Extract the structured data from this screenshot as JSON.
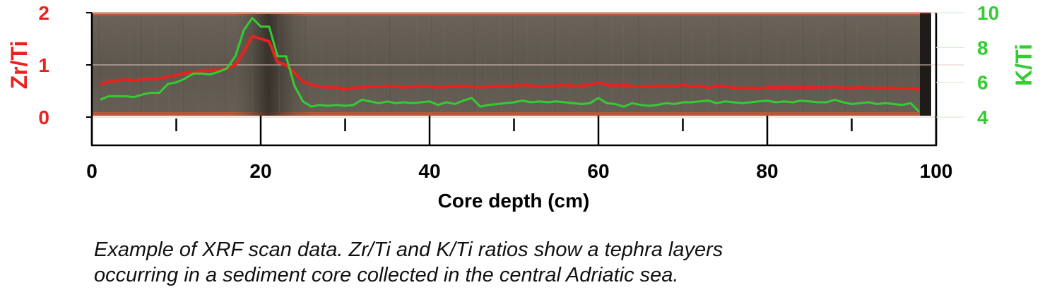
{
  "colors": {
    "zr_ti": "#e8231e",
    "k_ti": "#33cc33",
    "axis": "#000000",
    "core_fill": "#615a50",
    "core_dark": "#3d3730",
    "core_edge": "#c9572f"
  },
  "caption_lines": [
    "Example of XRF scan data. Zr/Ti and K/Ti ratios show a tephra layers",
    "occurring in a sediment core collected in the central Adriatic sea."
  ],
  "chart_data": {
    "type": "line",
    "background": "sediment core photograph",
    "xlabel": "Core depth (cm)",
    "xlim": [
      0,
      100
    ],
    "xticks": [
      0,
      20,
      40,
      60,
      80,
      100
    ],
    "xtick_labels": [
      "0",
      "20",
      "40",
      "60",
      "80",
      "100"
    ],
    "y_left": {
      "label": "Zr/Ti",
      "lim": [
        0,
        2
      ],
      "ticks": [
        0,
        1,
        2
      ],
      "tick_labels": [
        "0",
        "1",
        "2"
      ],
      "color": "#e8231e"
    },
    "y_right": {
      "label": "K/Ti",
      "lim": [
        4,
        10
      ],
      "ticks": [
        4,
        6,
        8,
        10
      ],
      "tick_labels": [
        "4",
        "6",
        "8",
        "10"
      ],
      "color": "#33cc33"
    },
    "grid": "horizontal, at left-axis ticks",
    "series": [
      {
        "name": "Zr/Ti",
        "axis": "left",
        "color": "#e8231e",
        "x": [
          1,
          2,
          3,
          4,
          5,
          6,
          7,
          8,
          9,
          10,
          11,
          12,
          13,
          14,
          15,
          16,
          17,
          18,
          19,
          20,
          21,
          22,
          23,
          24,
          25,
          26,
          27,
          28,
          29,
          30,
          31,
          32,
          33,
          34,
          35,
          36,
          37,
          38,
          39,
          40,
          41,
          42,
          43,
          44,
          45,
          46,
          47,
          48,
          49,
          50,
          51,
          52,
          53,
          54,
          55,
          56,
          57,
          58,
          59,
          60,
          61,
          62,
          63,
          64,
          65,
          66,
          67,
          68,
          69,
          70,
          71,
          72,
          73,
          74,
          75,
          76,
          77,
          78,
          79,
          80,
          81,
          82,
          83,
          84,
          85,
          86,
          87,
          88,
          89,
          90,
          91,
          92,
          93,
          94,
          95,
          96,
          97,
          98
        ],
        "y": [
          0.62,
          0.68,
          0.7,
          0.72,
          0.7,
          0.72,
          0.73,
          0.73,
          0.78,
          0.8,
          0.84,
          0.86,
          0.88,
          0.9,
          0.9,
          0.93,
          1.0,
          1.25,
          1.55,
          1.5,
          1.45,
          1.05,
          1.0,
          0.85,
          0.68,
          0.62,
          0.58,
          0.57,
          0.57,
          0.53,
          0.56,
          0.57,
          0.58,
          0.58,
          0.59,
          0.58,
          0.57,
          0.58,
          0.59,
          0.58,
          0.57,
          0.58,
          0.59,
          0.6,
          0.58,
          0.57,
          0.58,
          0.6,
          0.59,
          0.6,
          0.62,
          0.6,
          0.58,
          0.59,
          0.6,
          0.62,
          0.6,
          0.6,
          0.62,
          0.66,
          0.62,
          0.6,
          0.61,
          0.6,
          0.58,
          0.59,
          0.6,
          0.6,
          0.59,
          0.62,
          0.58,
          0.6,
          0.56,
          0.6,
          0.59,
          0.56,
          0.56,
          0.56,
          0.55,
          0.57,
          0.56,
          0.57,
          0.56,
          0.57,
          0.56,
          0.57,
          0.57,
          0.58,
          0.56,
          0.56,
          0.57,
          0.56,
          0.56,
          0.56,
          0.56,
          0.55,
          0.55,
          0.53
        ]
      },
      {
        "name": "K/Ti",
        "axis": "right",
        "color": "#33cc33",
        "x": [
          1,
          2,
          3,
          4,
          5,
          6,
          7,
          8,
          9,
          10,
          11,
          12,
          13,
          14,
          15,
          16,
          17,
          18,
          19,
          20,
          21,
          22,
          23,
          24,
          25,
          26,
          27,
          28,
          29,
          30,
          31,
          32,
          33,
          34,
          35,
          36,
          37,
          38,
          39,
          40,
          41,
          42,
          43,
          44,
          45,
          46,
          47,
          48,
          49,
          50,
          51,
          52,
          53,
          54,
          55,
          56,
          57,
          58,
          59,
          60,
          61,
          62,
          63,
          64,
          65,
          66,
          67,
          68,
          69,
          70,
          71,
          72,
          73,
          74,
          75,
          76,
          77,
          78,
          79,
          80,
          81,
          82,
          83,
          84,
          85,
          86,
          87,
          88,
          89,
          90,
          91,
          92,
          93,
          94,
          95,
          96,
          97,
          98
        ],
        "y": [
          5.0,
          5.2,
          5.2,
          5.2,
          5.15,
          5.3,
          5.4,
          5.4,
          5.9,
          6.0,
          6.2,
          6.5,
          6.5,
          6.45,
          6.6,
          6.8,
          7.5,
          9.0,
          9.7,
          9.2,
          9.2,
          7.5,
          7.5,
          5.8,
          4.9,
          4.6,
          4.7,
          4.65,
          4.7,
          4.65,
          4.7,
          5.0,
          4.9,
          4.8,
          4.9,
          4.8,
          4.85,
          4.8,
          4.85,
          4.9,
          4.7,
          4.85,
          4.75,
          4.95,
          5.1,
          4.6,
          4.7,
          4.75,
          4.8,
          4.85,
          4.95,
          4.85,
          4.9,
          4.85,
          4.9,
          4.85,
          4.8,
          4.75,
          4.8,
          5.1,
          4.8,
          4.75,
          4.6,
          4.8,
          4.7,
          4.65,
          4.7,
          4.8,
          4.75,
          4.85,
          4.85,
          4.9,
          4.95,
          4.8,
          4.9,
          4.85,
          4.8,
          4.85,
          4.9,
          4.95,
          4.85,
          4.9,
          4.85,
          4.95,
          4.9,
          4.85,
          4.85,
          5.0,
          4.85,
          4.75,
          4.8,
          4.85,
          4.75,
          4.8,
          4.75,
          4.7,
          4.8,
          4.3
        ]
      }
    ]
  }
}
